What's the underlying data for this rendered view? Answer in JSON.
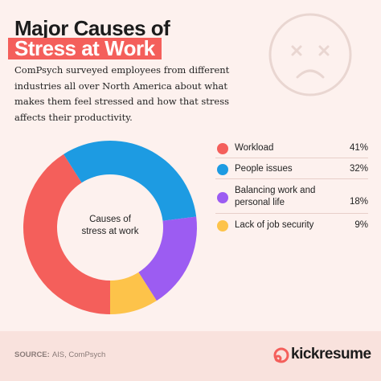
{
  "chart_data": {
    "type": "donut",
    "title": [
      "Major Causes of",
      "Stress at Work"
    ],
    "description": "ComPsych surveyed employees from different industries all over North America about what makes them feel stressed and how that stress affects their productivity.",
    "center_label": "Causes of stress at work",
    "categories": [
      "Workload",
      "People issues",
      "Balancing work and personal life",
      "Lack of job security"
    ],
    "values": [
      41,
      32,
      18,
      9
    ],
    "value_labels": [
      "41%",
      "32%",
      "18%",
      "9%"
    ],
    "colors": [
      "#f45f5b",
      "#1d9be2",
      "#9c5cf2",
      "#fdc34a"
    ],
    "source_label": "SOURCE:",
    "source": "AIS, ComPsych",
    "brand": "kickresume"
  }
}
